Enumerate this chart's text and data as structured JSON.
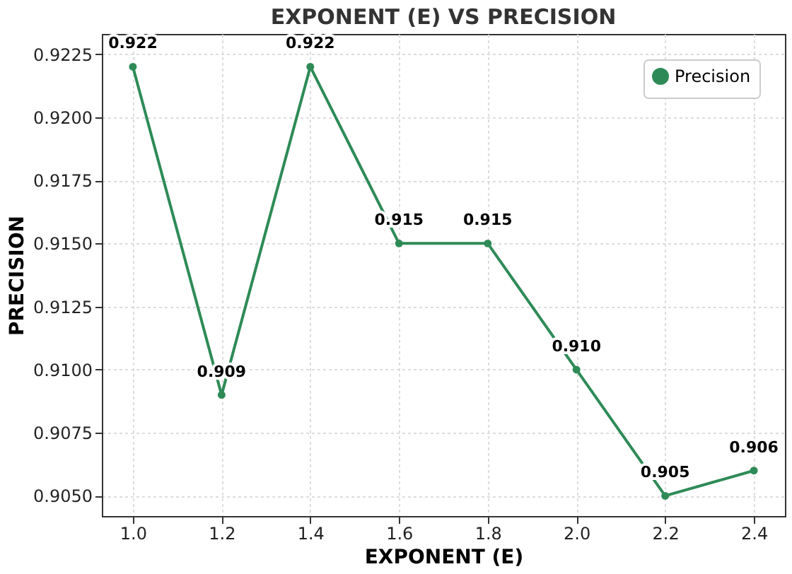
{
  "chart_data": {
    "type": "line",
    "title": "EXPONENT (E) VS PRECISION",
    "xlabel": "EXPONENT (E)",
    "ylabel": "PRECISION",
    "x": [
      1.0,
      1.2,
      1.4,
      1.6,
      1.8,
      2.0,
      2.2,
      2.4
    ],
    "series": [
      {
        "name": "Precision",
        "color": "#2e8b57",
        "values": [
          0.922,
          0.909,
          0.922,
          0.915,
          0.915,
          0.91,
          0.905,
          0.906
        ],
        "value_labels": [
          "0.922",
          "0.909",
          "0.922",
          "0.915",
          "0.915",
          "0.910",
          "0.905",
          "0.906"
        ]
      }
    ],
    "xlim": [
      0.93,
      2.47
    ],
    "ylim": [
      0.9042,
      0.9233
    ],
    "xticks": [
      {
        "value": 1.0,
        "label": "1.0"
      },
      {
        "value": 1.2,
        "label": "1.2"
      },
      {
        "value": 1.4,
        "label": "1.4"
      },
      {
        "value": 1.6,
        "label": "1.6"
      },
      {
        "value": 1.8,
        "label": "1.8"
      },
      {
        "value": 2.0,
        "label": "2.0"
      },
      {
        "value": 2.2,
        "label": "2.2"
      },
      {
        "value": 2.4,
        "label": "2.4"
      }
    ],
    "yticks": [
      {
        "value": 0.905,
        "label": "0.9050"
      },
      {
        "value": 0.9075,
        "label": "0.9075"
      },
      {
        "value": 0.91,
        "label": "0.9100"
      },
      {
        "value": 0.9125,
        "label": "0.9125"
      },
      {
        "value": 0.915,
        "label": "0.9150"
      },
      {
        "value": 0.9175,
        "label": "0.9175"
      },
      {
        "value": 0.92,
        "label": "0.9200"
      },
      {
        "value": 0.9225,
        "label": "0.9225"
      }
    ],
    "grid": true,
    "legend": "top right",
    "marker": "circle",
    "line_style": "solid"
  }
}
